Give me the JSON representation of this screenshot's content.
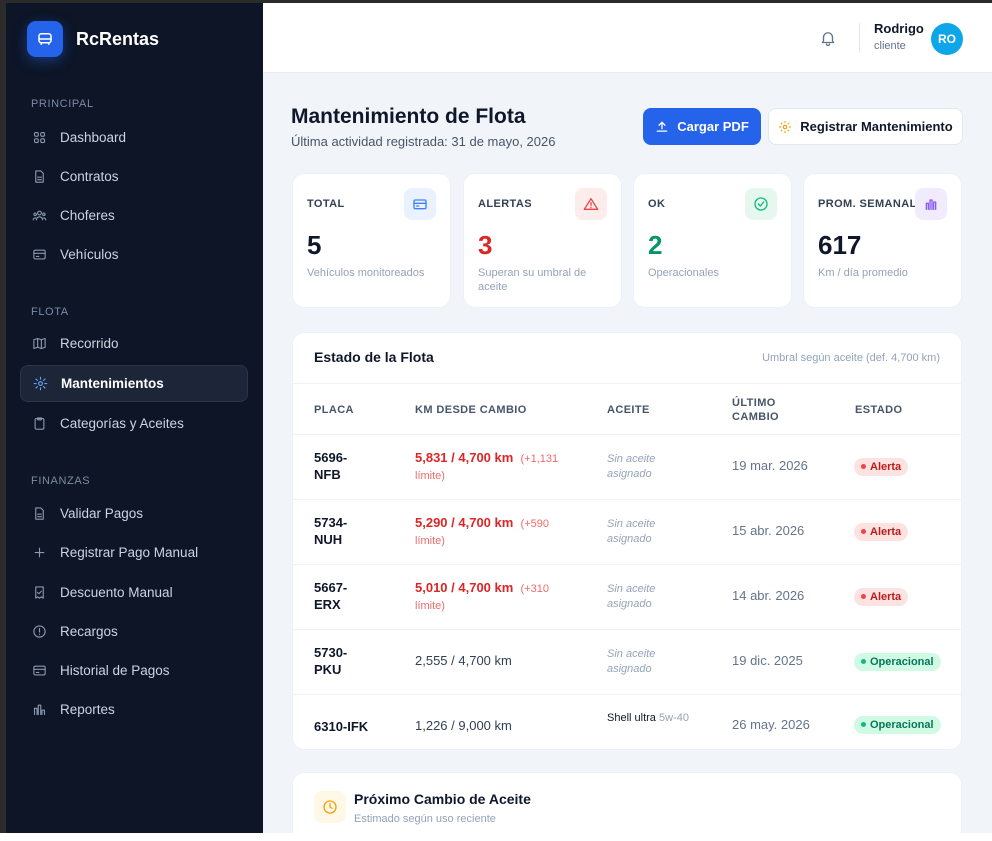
{
  "brand": {
    "name": "RcRentas"
  },
  "sidebar": {
    "sections": [
      {
        "label": "PRINCIPAL",
        "items": [
          {
            "label": "Dashboard",
            "icon": "grid-icon"
          },
          {
            "label": "Contratos",
            "icon": "document-icon"
          },
          {
            "label": "Choferes",
            "icon": "users-icon"
          },
          {
            "label": "Vehículos",
            "icon": "card-icon"
          }
        ]
      },
      {
        "label": "FLOTA",
        "items": [
          {
            "label": "Recorrido",
            "icon": "map-icon"
          },
          {
            "label": "Mantenimientos",
            "icon": "gear-icon",
            "active": true
          },
          {
            "label": "Categorías y Aceites",
            "icon": "clipboard-icon"
          }
        ]
      },
      {
        "label": "FINANZAS",
        "items": [
          {
            "label": "Validar Pagos",
            "icon": "document-icon"
          },
          {
            "label": "Registrar Pago Manual",
            "icon": "plus-icon"
          },
          {
            "label": "Descuento Manual",
            "icon": "receipt-icon"
          },
          {
            "label": "Recargos",
            "icon": "alert-circle-icon"
          },
          {
            "label": "Historial de Pagos",
            "icon": "card-icon"
          },
          {
            "label": "Reportes",
            "icon": "bar-chart-icon"
          }
        ]
      }
    ]
  },
  "topbar": {
    "user_name": "Rodrigo",
    "user_role": "cliente",
    "avatar_initials": "RO"
  },
  "header": {
    "title": "Mantenimiento de Flota",
    "subtitle": "Última actividad registrada: 31 de mayo, 2026",
    "upload_label": "Cargar PDF",
    "register_label": "Registrar Mantenimiento"
  },
  "stats": [
    {
      "label": "TOTAL",
      "value": "5",
      "desc": "Vehículos monitoreados",
      "color": "#0f172a",
      "icon_bg": "#eaf1ff",
      "icon_color": "#3b82f6"
    },
    {
      "label": "ALERTAS",
      "value": "3",
      "desc": "Superan su umbral de aceite",
      "color": "#dc2626",
      "icon_bg": "#fdecec",
      "icon_color": "#ef4444"
    },
    {
      "label": "OK",
      "value": "2",
      "desc": "Operacionales",
      "color": "#059669",
      "icon_bg": "#e6f7ef",
      "icon_color": "#10b981"
    },
    {
      "label": "PROM. SEMANAL",
      "value": "617",
      "desc": "Km / día promedio",
      "color": "#0f172a",
      "icon_bg": "#f1ecfd",
      "icon_color": "#8b5cf6"
    }
  ],
  "fleet": {
    "title": "Estado de la Flota",
    "note": "Umbral según aceite (def. 4,700 km)",
    "columns": [
      "PLACA",
      "KM DESDE CAMBIO",
      "ACEITE",
      "ÚLTIMO CAMBIO",
      "ESTADO"
    ],
    "rows": [
      {
        "plate": "5696-NFB",
        "km": "5,831 / 4,700 km",
        "km_extra": "(+1,131 límite)",
        "oil": "Sin aceite asignado",
        "oil_grade": "",
        "date": "19 mar. 2026",
        "status": "Alerta",
        "alert": true
      },
      {
        "plate": "5734-NUH",
        "km": "5,290 / 4,700 km",
        "km_extra": "(+590 límite)",
        "oil": "Sin aceite asignado",
        "oil_grade": "",
        "date": "15 abr. 2026",
        "status": "Alerta",
        "alert": true
      },
      {
        "plate": "5667-ERX",
        "km": "5,010 / 4,700 km",
        "km_extra": "(+310 límite)",
        "oil": "Sin aceite asignado",
        "oil_grade": "",
        "date": "14 abr. 2026",
        "status": "Alerta",
        "alert": true
      },
      {
        "plate": "5730-PKU",
        "km": "2,555 / 4,700 km",
        "km_extra": "",
        "oil": "Sin aceite asignado",
        "oil_grade": "",
        "date": "19 dic. 2025",
        "status": "Operacional",
        "alert": false
      },
      {
        "plate": "6310-IFK",
        "km": "1,226 / 9,000 km",
        "km_extra": "",
        "oil": "Shell ultra",
        "oil_grade": "5w-40",
        "date": "26 may. 2026",
        "status": "Operacional",
        "alert": false
      }
    ]
  },
  "next_change": {
    "title": "Próximo Cambio de Aceite",
    "subtitle": "Estimado según uso reciente"
  }
}
